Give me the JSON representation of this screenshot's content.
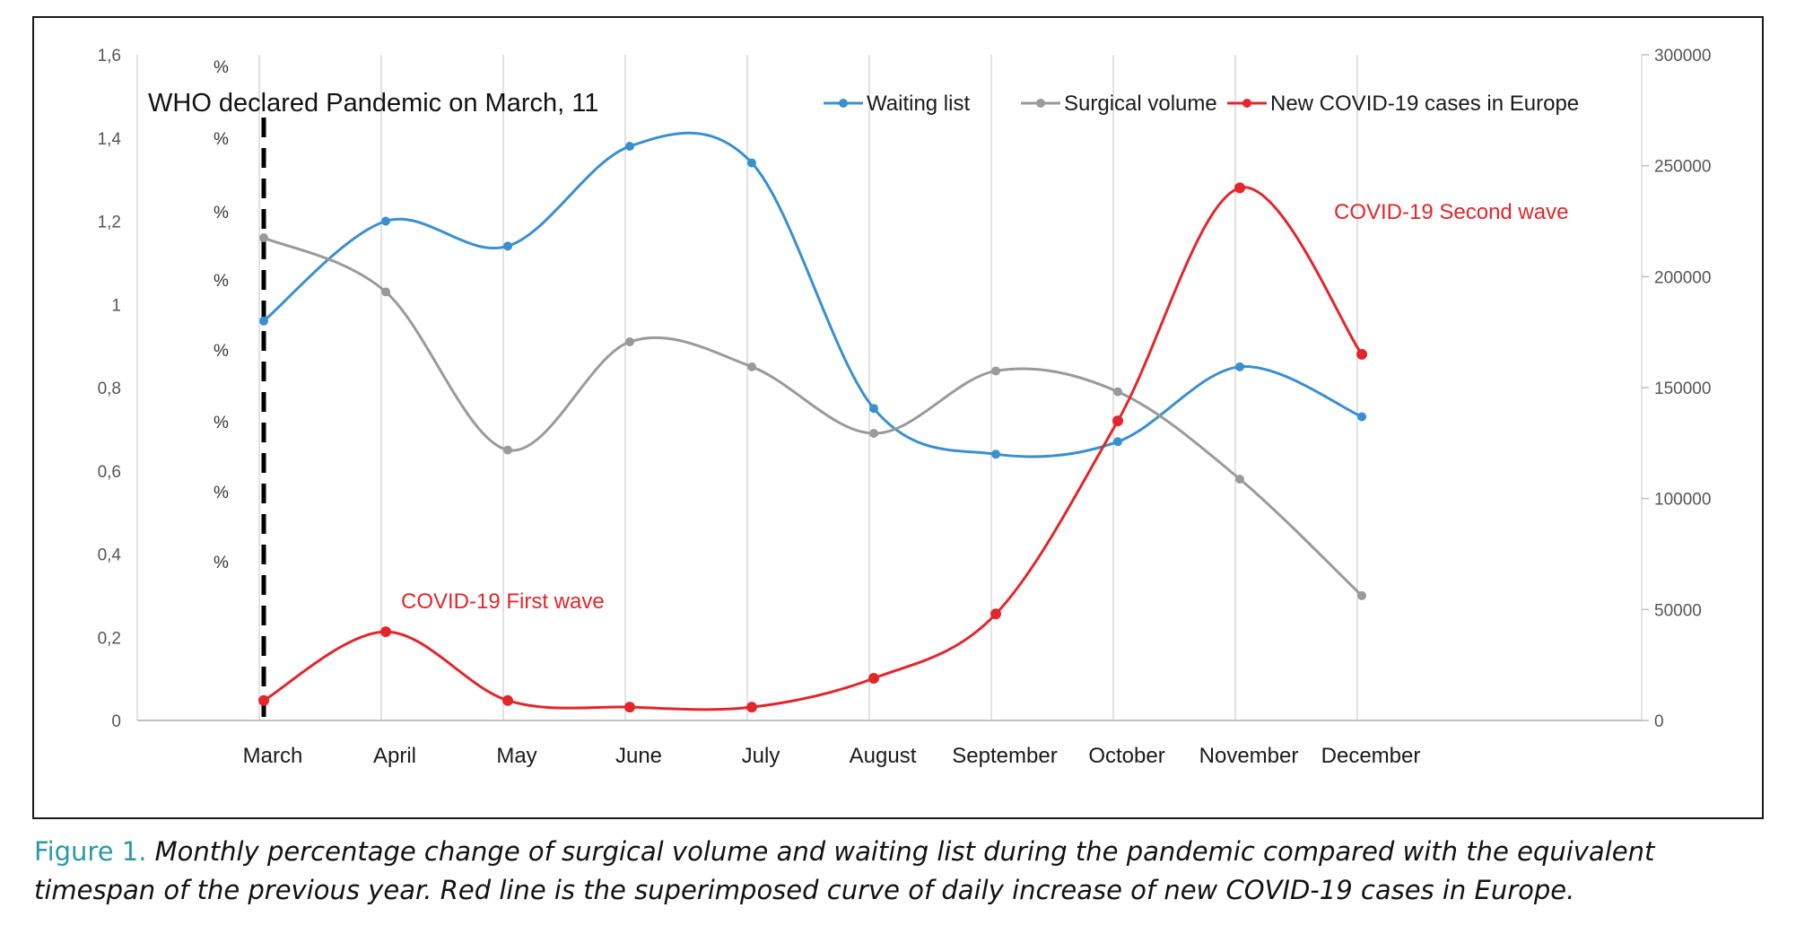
{
  "chart_data": {
    "type": "line",
    "categories": [
      "March",
      "April",
      "May",
      "June",
      "July",
      "August",
      "September",
      "October",
      "November",
      "December"
    ],
    "left_axis": {
      "ticks": [
        "0",
        "0,2",
        "0,4",
        "0,6",
        "0,8",
        "1",
        "1,2",
        "1,4",
        "1,6"
      ],
      "ylim": [
        0,
        1.6
      ],
      "unit_marks": [
        "%",
        "%",
        "%",
        "%",
        "%",
        "%",
        "%",
        "%"
      ]
    },
    "right_axis": {
      "ticks": [
        "0",
        "50000",
        "100000",
        "150000",
        "200000",
        "250000",
        "300000"
      ],
      "ylim": [
        0,
        300000
      ]
    },
    "series": [
      {
        "name": "Waiting list",
        "axis": "left",
        "color": "#3a8fcf",
        "values": [
          0.96,
          1.2,
          1.14,
          1.38,
          1.34,
          0.75,
          0.64,
          0.67,
          0.85,
          0.73
        ]
      },
      {
        "name": "Surgical volume",
        "axis": "left",
        "color": "#9a9a9a",
        "values": [
          1.16,
          1.03,
          0.65,
          0.91,
          0.85,
          0.69,
          0.84,
          0.79,
          0.58,
          0.3
        ]
      },
      {
        "name": "New COVID-19 cases in Europe",
        "axis": "right",
        "color": "#e2262b",
        "values": [
          9000,
          40000,
          9000,
          6000,
          6000,
          19000,
          48000,
          135000,
          240000,
          165000
        ]
      }
    ],
    "annotations": {
      "pandemic": "WHO declared Pandemic on March, 11",
      "first_wave": "COVID-19 First wave",
      "second_wave": "COVID-19 Second wave"
    },
    "grid": "vertical",
    "legend_position": "top-right"
  },
  "caption": {
    "label": "Figure 1.",
    "text": "Monthly percentage change of surgical volume and waiting list during the pandemic compared with the equivalent timespan of the previous year. Red line is the superimposed curve of daily increase of new COVID-19 cases in Europe."
  }
}
